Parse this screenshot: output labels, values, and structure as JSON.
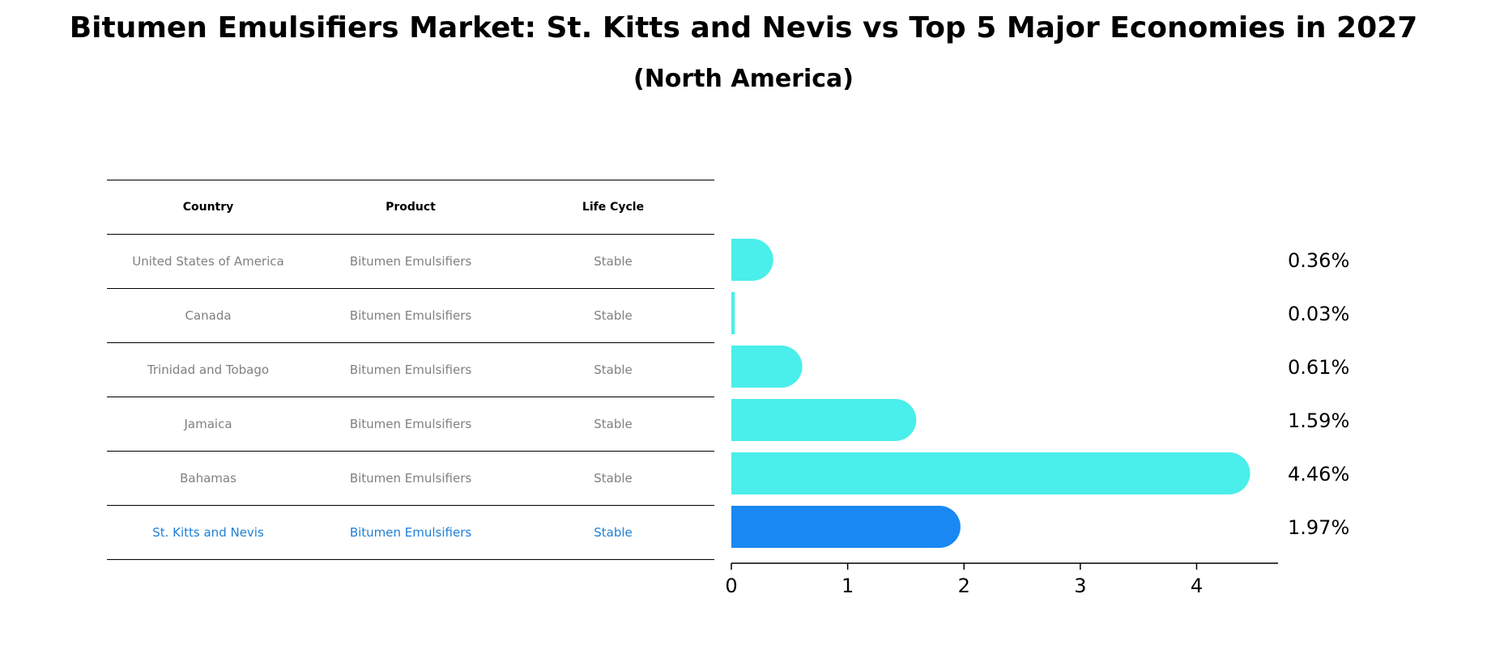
{
  "title": "Bitumen Emulsifiers Market: St. Kitts and Nevis vs Top 5 Major Economies in 2027",
  "subtitle": "(North America)",
  "table": {
    "headers": [
      "Country",
      "Product",
      "Life Cycle"
    ],
    "rows": [
      {
        "country": "United States of America",
        "product": "Bitumen Emulsifiers",
        "life_cycle": "Stable"
      },
      {
        "country": "Canada",
        "product": "Bitumen Emulsifiers",
        "life_cycle": "Stable"
      },
      {
        "country": "Trinidad and Tobago",
        "product": "Bitumen Emulsifiers",
        "life_cycle": "Stable"
      },
      {
        "country": "Jamaica",
        "product": "Bitumen Emulsifiers",
        "life_cycle": "Stable"
      },
      {
        "country": "Bahamas",
        "product": "Bitumen Emulsifiers",
        "life_cycle": "Stable"
      },
      {
        "country": "St. Kitts and Nevis",
        "product": "Bitumen Emulsifiers",
        "life_cycle": "Stable"
      }
    ]
  },
  "colors": {
    "bar": "#4aeeea",
    "highlight": "#1a88f2",
    "highlight_text": "#1e7fd6"
  },
  "chart_data": {
    "type": "bar",
    "orientation": "horizontal",
    "categories": [
      "United States of America",
      "Canada",
      "Trinidad and Tobago",
      "Jamaica",
      "Bahamas",
      "St. Kitts and Nevis"
    ],
    "values": [
      0.36,
      0.03,
      0.61,
      1.59,
      4.46,
      1.97
    ],
    "value_labels": [
      "0.36%",
      "0.03%",
      "0.61%",
      "1.59%",
      "4.46%",
      "1.97%"
    ],
    "highlight_index": 5,
    "xlim": [
      0,
      4.7
    ],
    "xticks": [
      0,
      1,
      2,
      3,
      4
    ],
    "grid": false
  }
}
